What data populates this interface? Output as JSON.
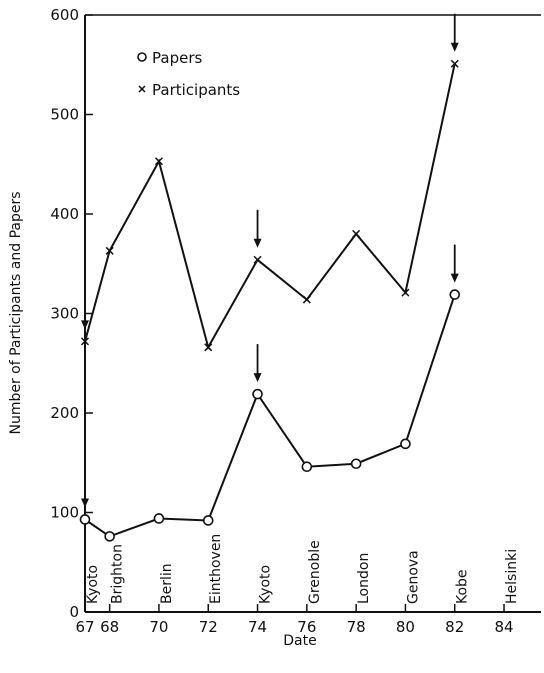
{
  "chart_data": {
    "type": "line",
    "xlabel": "Date",
    "ylabel": "Number of Participants and Papers",
    "xlim": [
      67,
      85.5
    ],
    "ylim": [
      0,
      600
    ],
    "x_ticks": [
      67,
      68,
      70,
      72,
      74,
      76,
      78,
      80,
      82,
      84
    ],
    "x_tick_labels": [
      "67",
      "68",
      "70",
      "72",
      "74",
      "76",
      "78",
      "80",
      "82",
      "84"
    ],
    "y_ticks": [
      0,
      100,
      200,
      300,
      400,
      500,
      600
    ],
    "y_tick_labels": [
      "0",
      "100",
      "200",
      "300",
      "400",
      "500",
      "600"
    ],
    "grid": false,
    "legend_position": "top-left",
    "series": [
      {
        "name": "Papers",
        "marker": "circle",
        "x": [
          67,
          68,
          70,
          72,
          74,
          76,
          78,
          80,
          82
        ],
        "y": [
          93,
          76,
          94,
          92,
          219,
          146,
          149,
          169,
          319
        ]
      },
      {
        "name": "Participants",
        "marker": "x",
        "x": [
          67,
          68,
          70,
          72,
          74,
          76,
          78,
          80,
          82
        ],
        "y": [
          272,
          363,
          453,
          266,
          354,
          314,
          380,
          321,
          551
        ]
      }
    ],
    "conference_labels": [
      {
        "x": 67,
        "label": "Kyoto"
      },
      {
        "x": 68,
        "label": "Brighton"
      },
      {
        "x": 70,
        "label": "Berlin"
      },
      {
        "x": 72,
        "label": "Einthoven"
      },
      {
        "x": 74,
        "label": "Kyoto"
      },
      {
        "x": 76,
        "label": "Grenoble"
      },
      {
        "x": 78,
        "label": "London"
      },
      {
        "x": 80,
        "label": "Genova"
      },
      {
        "x": 82,
        "label": "Kobe"
      },
      {
        "x": 84,
        "label": "Helsinki"
      }
    ],
    "arrows": [
      {
        "series": "Participants",
        "x": 67
      },
      {
        "series": "Participants",
        "x": 74
      },
      {
        "series": "Participants",
        "x": 82
      },
      {
        "series": "Papers",
        "x": 67
      },
      {
        "series": "Papers",
        "x": 74
      },
      {
        "series": "Papers",
        "x": 82
      }
    ]
  }
}
